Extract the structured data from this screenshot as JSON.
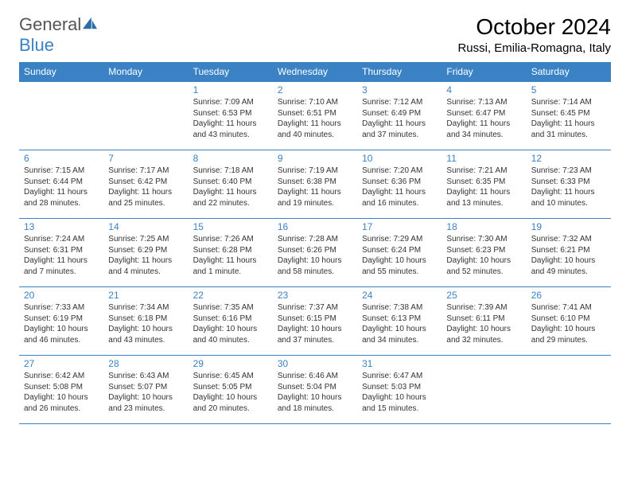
{
  "brand": {
    "text1": "General",
    "text2": "Blue"
  },
  "title": "October 2024",
  "location": "Russi, Emilia-Romagna, Italy",
  "colors": {
    "accent": "#3b82c4",
    "bg": "#ffffff",
    "text": "#333333"
  },
  "weekdays": [
    "Sunday",
    "Monday",
    "Tuesday",
    "Wednesday",
    "Thursday",
    "Friday",
    "Saturday"
  ],
  "weeks": [
    [
      null,
      null,
      {
        "n": "1",
        "sr": "Sunrise: 7:09 AM",
        "ss": "Sunset: 6:53 PM",
        "dl": "Daylight: 11 hours and 43 minutes."
      },
      {
        "n": "2",
        "sr": "Sunrise: 7:10 AM",
        "ss": "Sunset: 6:51 PM",
        "dl": "Daylight: 11 hours and 40 minutes."
      },
      {
        "n": "3",
        "sr": "Sunrise: 7:12 AM",
        "ss": "Sunset: 6:49 PM",
        "dl": "Daylight: 11 hours and 37 minutes."
      },
      {
        "n": "4",
        "sr": "Sunrise: 7:13 AM",
        "ss": "Sunset: 6:47 PM",
        "dl": "Daylight: 11 hours and 34 minutes."
      },
      {
        "n": "5",
        "sr": "Sunrise: 7:14 AM",
        "ss": "Sunset: 6:45 PM",
        "dl": "Daylight: 11 hours and 31 minutes."
      }
    ],
    [
      {
        "n": "6",
        "sr": "Sunrise: 7:15 AM",
        "ss": "Sunset: 6:44 PM",
        "dl": "Daylight: 11 hours and 28 minutes."
      },
      {
        "n": "7",
        "sr": "Sunrise: 7:17 AM",
        "ss": "Sunset: 6:42 PM",
        "dl": "Daylight: 11 hours and 25 minutes."
      },
      {
        "n": "8",
        "sr": "Sunrise: 7:18 AM",
        "ss": "Sunset: 6:40 PM",
        "dl": "Daylight: 11 hours and 22 minutes."
      },
      {
        "n": "9",
        "sr": "Sunrise: 7:19 AM",
        "ss": "Sunset: 6:38 PM",
        "dl": "Daylight: 11 hours and 19 minutes."
      },
      {
        "n": "10",
        "sr": "Sunrise: 7:20 AM",
        "ss": "Sunset: 6:36 PM",
        "dl": "Daylight: 11 hours and 16 minutes."
      },
      {
        "n": "11",
        "sr": "Sunrise: 7:21 AM",
        "ss": "Sunset: 6:35 PM",
        "dl": "Daylight: 11 hours and 13 minutes."
      },
      {
        "n": "12",
        "sr": "Sunrise: 7:23 AM",
        "ss": "Sunset: 6:33 PM",
        "dl": "Daylight: 11 hours and 10 minutes."
      }
    ],
    [
      {
        "n": "13",
        "sr": "Sunrise: 7:24 AM",
        "ss": "Sunset: 6:31 PM",
        "dl": "Daylight: 11 hours and 7 minutes."
      },
      {
        "n": "14",
        "sr": "Sunrise: 7:25 AM",
        "ss": "Sunset: 6:29 PM",
        "dl": "Daylight: 11 hours and 4 minutes."
      },
      {
        "n": "15",
        "sr": "Sunrise: 7:26 AM",
        "ss": "Sunset: 6:28 PM",
        "dl": "Daylight: 11 hours and 1 minute."
      },
      {
        "n": "16",
        "sr": "Sunrise: 7:28 AM",
        "ss": "Sunset: 6:26 PM",
        "dl": "Daylight: 10 hours and 58 minutes."
      },
      {
        "n": "17",
        "sr": "Sunrise: 7:29 AM",
        "ss": "Sunset: 6:24 PM",
        "dl": "Daylight: 10 hours and 55 minutes."
      },
      {
        "n": "18",
        "sr": "Sunrise: 7:30 AM",
        "ss": "Sunset: 6:23 PM",
        "dl": "Daylight: 10 hours and 52 minutes."
      },
      {
        "n": "19",
        "sr": "Sunrise: 7:32 AM",
        "ss": "Sunset: 6:21 PM",
        "dl": "Daylight: 10 hours and 49 minutes."
      }
    ],
    [
      {
        "n": "20",
        "sr": "Sunrise: 7:33 AM",
        "ss": "Sunset: 6:19 PM",
        "dl": "Daylight: 10 hours and 46 minutes."
      },
      {
        "n": "21",
        "sr": "Sunrise: 7:34 AM",
        "ss": "Sunset: 6:18 PM",
        "dl": "Daylight: 10 hours and 43 minutes."
      },
      {
        "n": "22",
        "sr": "Sunrise: 7:35 AM",
        "ss": "Sunset: 6:16 PM",
        "dl": "Daylight: 10 hours and 40 minutes."
      },
      {
        "n": "23",
        "sr": "Sunrise: 7:37 AM",
        "ss": "Sunset: 6:15 PM",
        "dl": "Daylight: 10 hours and 37 minutes."
      },
      {
        "n": "24",
        "sr": "Sunrise: 7:38 AM",
        "ss": "Sunset: 6:13 PM",
        "dl": "Daylight: 10 hours and 34 minutes."
      },
      {
        "n": "25",
        "sr": "Sunrise: 7:39 AM",
        "ss": "Sunset: 6:11 PM",
        "dl": "Daylight: 10 hours and 32 minutes."
      },
      {
        "n": "26",
        "sr": "Sunrise: 7:41 AM",
        "ss": "Sunset: 6:10 PM",
        "dl": "Daylight: 10 hours and 29 minutes."
      }
    ],
    [
      {
        "n": "27",
        "sr": "Sunrise: 6:42 AM",
        "ss": "Sunset: 5:08 PM",
        "dl": "Daylight: 10 hours and 26 minutes."
      },
      {
        "n": "28",
        "sr": "Sunrise: 6:43 AM",
        "ss": "Sunset: 5:07 PM",
        "dl": "Daylight: 10 hours and 23 minutes."
      },
      {
        "n": "29",
        "sr": "Sunrise: 6:45 AM",
        "ss": "Sunset: 5:05 PM",
        "dl": "Daylight: 10 hours and 20 minutes."
      },
      {
        "n": "30",
        "sr": "Sunrise: 6:46 AM",
        "ss": "Sunset: 5:04 PM",
        "dl": "Daylight: 10 hours and 18 minutes."
      },
      {
        "n": "31",
        "sr": "Sunrise: 6:47 AM",
        "ss": "Sunset: 5:03 PM",
        "dl": "Daylight: 10 hours and 15 minutes."
      },
      null,
      null
    ]
  ]
}
